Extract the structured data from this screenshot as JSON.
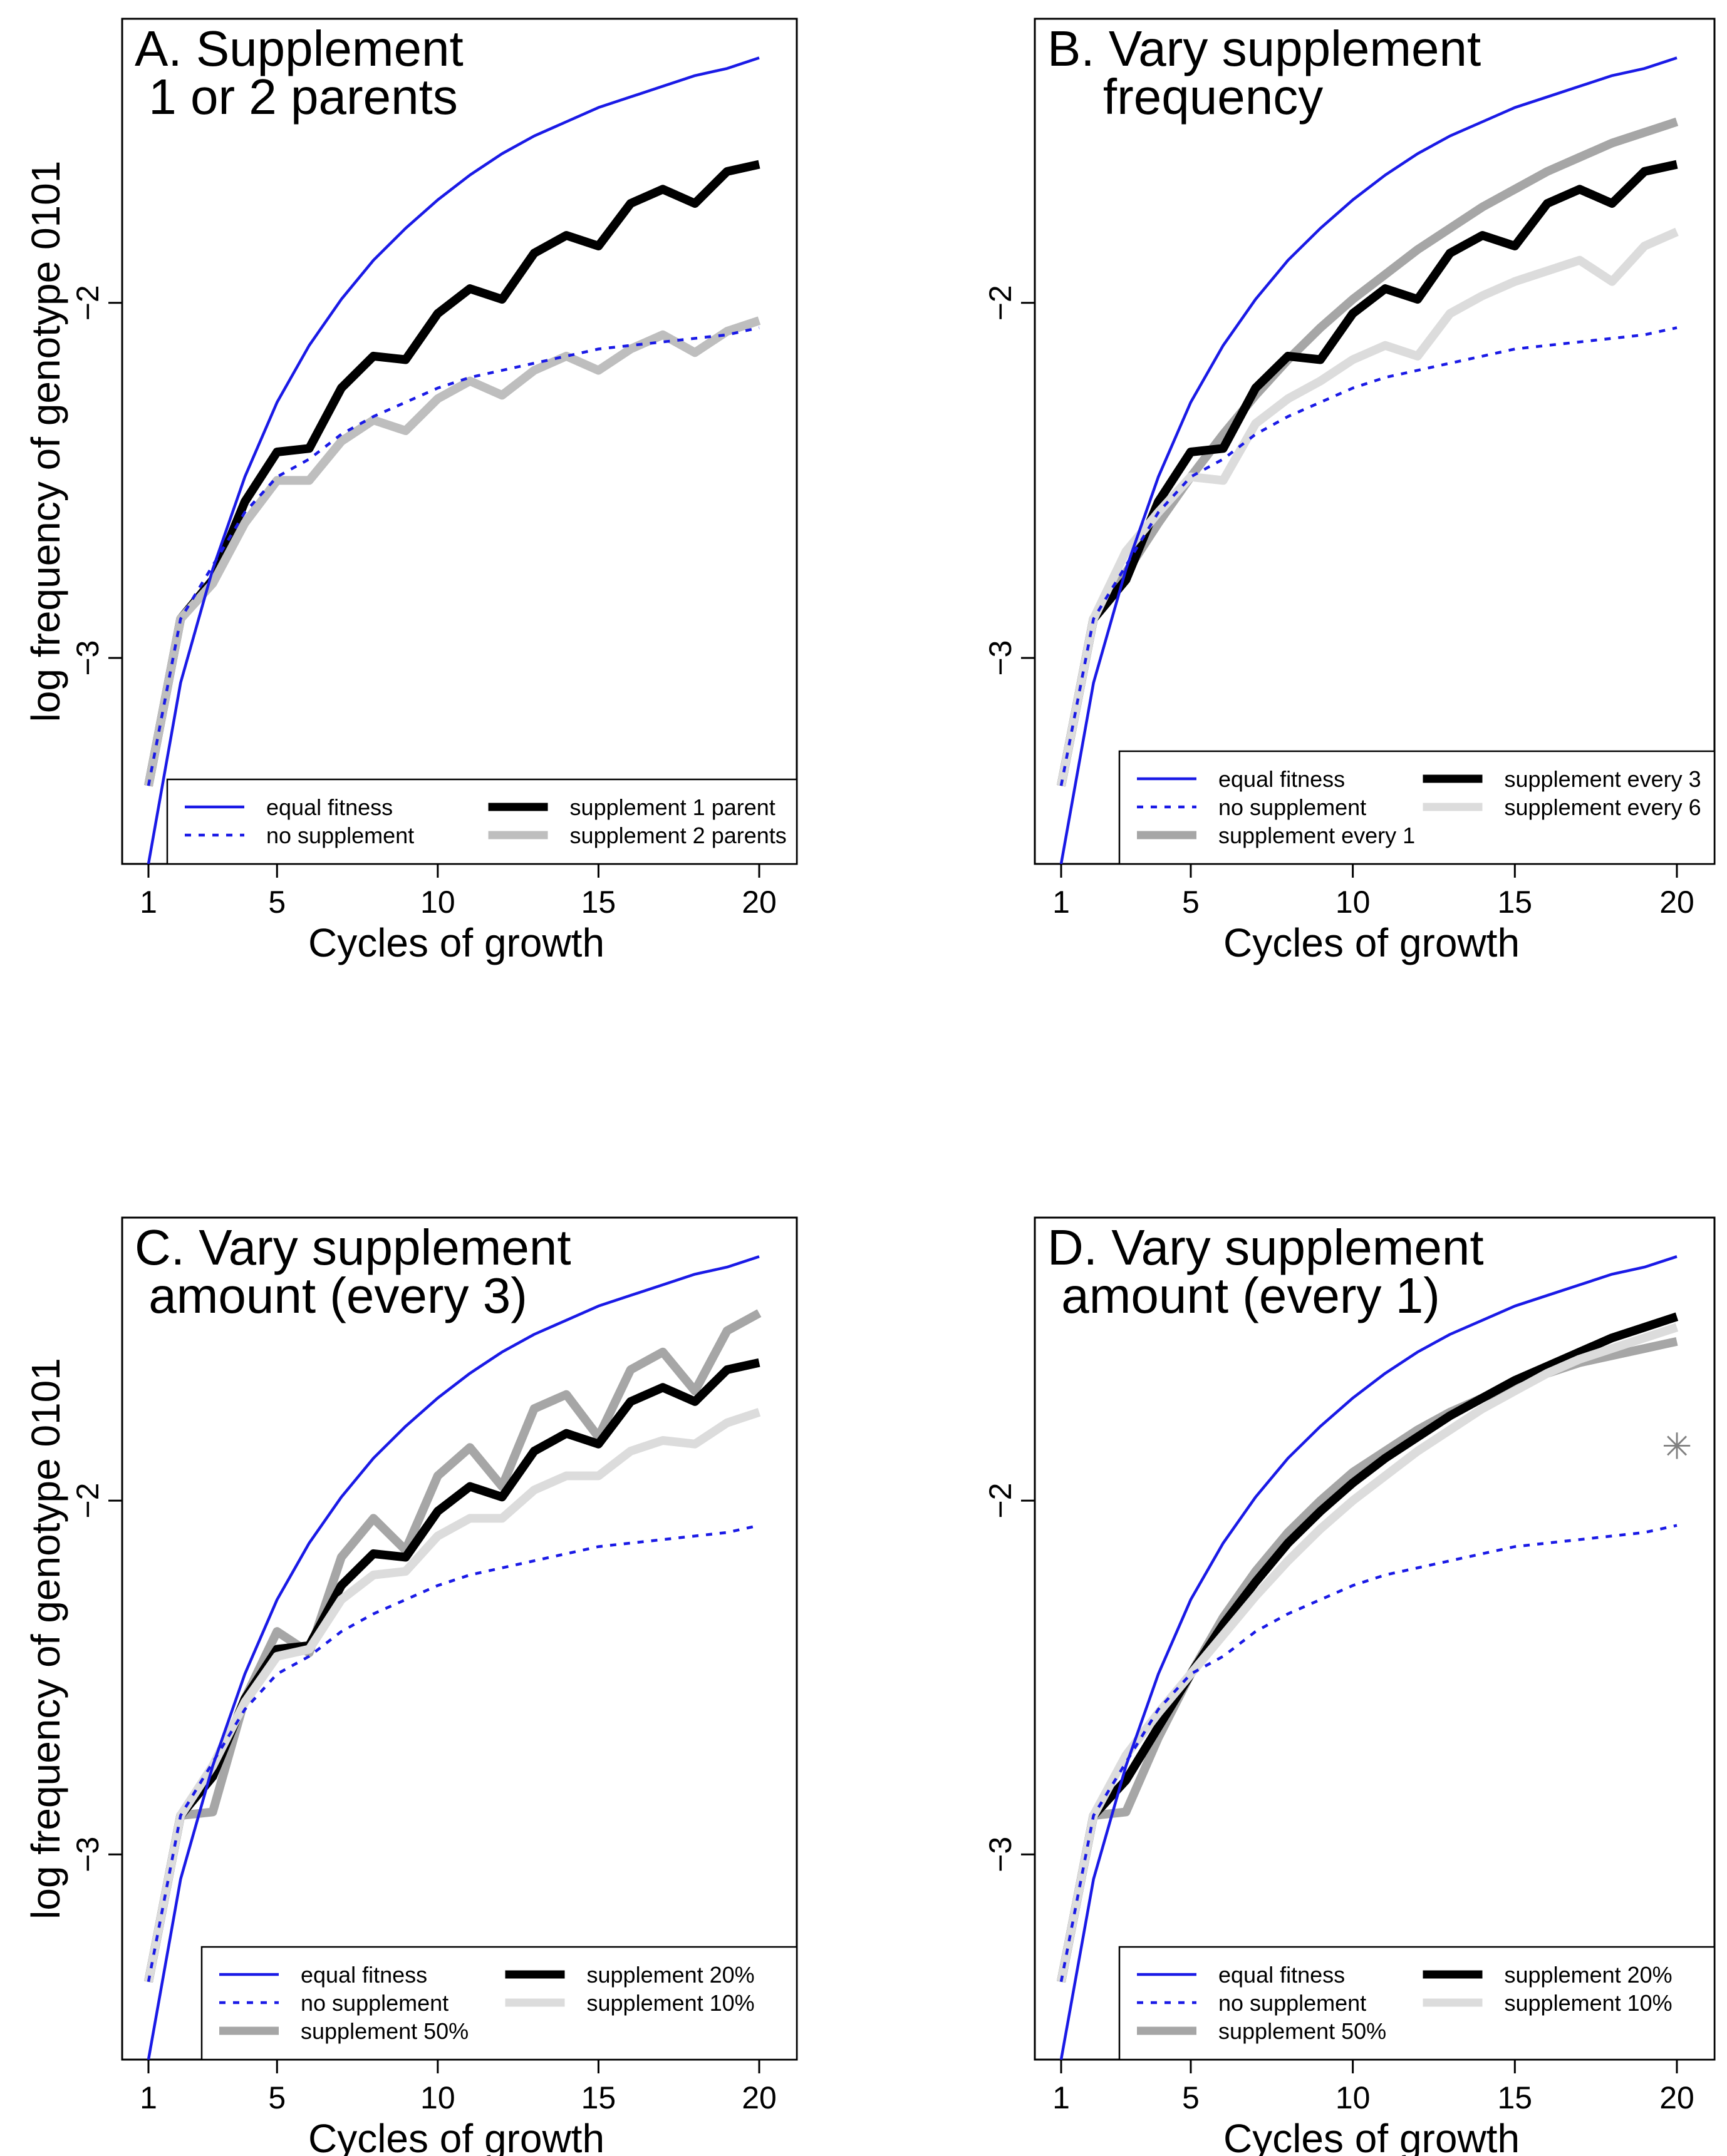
{
  "colors": {
    "blue": "#1a1ae6",
    "black": "#000000",
    "darkgray": "#a6a6a6",
    "midgray": "#bebebe",
    "lightgray": "#dcdcdc",
    "star": "#808080"
  },
  "chart_data": [
    {
      "id": "A",
      "type": "line",
      "title_lines": [
        "A. Supplement",
        " 1 or 2 parents"
      ],
      "xlabel": "Cycles of growth",
      "ylabel": "log frequency of genotype 0101",
      "xlim": [
        1,
        20
      ],
      "ylim": [
        -3.58,
        -1.2
      ],
      "xticks": [
        "1",
        "5",
        "10",
        "15",
        "20"
      ],
      "yticks": [
        "−2",
        "−3"
      ],
      "series": [
        {
          "name": "equal fitness",
          "style": "blue-solid",
          "x": [
            1,
            2,
            3,
            4,
            5,
            6,
            7,
            8,
            9,
            10,
            11,
            12,
            13,
            14,
            15,
            16,
            17,
            18,
            19,
            20
          ],
          "values": [
            -3.58,
            -3.07,
            -2.75,
            -2.49,
            -2.28,
            -2.12,
            -1.99,
            -1.88,
            -1.79,
            -1.71,
            -1.64,
            -1.58,
            -1.53,
            -1.49,
            -1.45,
            -1.42,
            -1.39,
            -1.36,
            -1.34,
            -1.31
          ]
        },
        {
          "name": "no supplement",
          "style": "blue-dotted",
          "x": [
            1,
            2,
            3,
            4,
            5,
            6,
            7,
            8,
            9,
            10,
            11,
            12,
            13,
            14,
            15,
            16,
            17,
            18,
            19,
            20
          ],
          "values": [
            -3.36,
            -2.89,
            -2.74,
            -2.59,
            -2.49,
            -2.44,
            -2.37,
            -2.32,
            -2.28,
            -2.24,
            -2.21,
            -2.19,
            -2.17,
            -2.15,
            -2.13,
            -2.12,
            -2.11,
            -2.1,
            -2.09,
            -2.07
          ]
        },
        {
          "name": "supplement 1 parent",
          "style": "black-thick",
          "x": [
            1,
            2,
            3,
            4,
            5,
            6,
            7,
            8,
            9,
            10,
            11,
            12,
            13,
            14,
            15,
            16,
            17,
            18,
            19,
            20
          ],
          "values": [
            -3.36,
            -2.89,
            -2.78,
            -2.56,
            -2.42,
            -2.41,
            -2.24,
            -2.15,
            -2.16,
            -2.03,
            -1.96,
            -1.99,
            -1.86,
            -1.81,
            -1.84,
            -1.72,
            -1.68,
            -1.72,
            -1.63,
            -1.61
          ]
        },
        {
          "name": "supplement 2 parents",
          "style": "gray-thick",
          "x": [
            1,
            2,
            3,
            4,
            5,
            6,
            7,
            8,
            9,
            10,
            11,
            12,
            13,
            14,
            15,
            16,
            17,
            18,
            19,
            20
          ],
          "values": [
            -3.36,
            -2.89,
            -2.79,
            -2.62,
            -2.5,
            -2.5,
            -2.39,
            -2.33,
            -2.36,
            -2.27,
            -2.22,
            -2.26,
            -2.19,
            -2.15,
            -2.19,
            -2.13,
            -2.09,
            -2.14,
            -2.08,
            -2.05
          ]
        }
      ],
      "legend": {
        "left": [
          "equal fitness",
          "no supplement"
        ],
        "right": [
          "supplement 1 parent",
          "supplement 2 parents"
        ]
      }
    },
    {
      "id": "B",
      "type": "line",
      "title_lines": [
        "B. Vary supplement",
        "    frequency"
      ],
      "xlabel": "Cycles of growth",
      "ylabel": "",
      "xlim": [
        1,
        20
      ],
      "ylim": [
        -3.58,
        -1.2
      ],
      "xticks": [
        "1",
        "5",
        "10",
        "15",
        "20"
      ],
      "yticks": [
        "−2",
        "−3"
      ],
      "series": [
        {
          "name": "equal fitness",
          "style": "blue-solid",
          "x": [
            1,
            2,
            3,
            4,
            5,
            6,
            7,
            8,
            9,
            10,
            11,
            12,
            13,
            14,
            15,
            16,
            17,
            18,
            19,
            20
          ],
          "values": [
            -3.58,
            -3.07,
            -2.75,
            -2.49,
            -2.28,
            -2.12,
            -1.99,
            -1.88,
            -1.79,
            -1.71,
            -1.64,
            -1.58,
            -1.53,
            -1.49,
            -1.45,
            -1.42,
            -1.39,
            -1.36,
            -1.34,
            -1.31
          ]
        },
        {
          "name": "no supplement",
          "style": "blue-dotted",
          "x": [
            1,
            2,
            3,
            4,
            5,
            6,
            7,
            8,
            9,
            10,
            11,
            12,
            13,
            14,
            15,
            16,
            17,
            18,
            19,
            20
          ],
          "values": [
            -3.36,
            -2.89,
            -2.74,
            -2.59,
            -2.49,
            -2.44,
            -2.37,
            -2.32,
            -2.28,
            -2.24,
            -2.21,
            -2.19,
            -2.17,
            -2.15,
            -2.13,
            -2.12,
            -2.11,
            -2.1,
            -2.09,
            -2.07
          ]
        },
        {
          "name": "supplement every 1",
          "style": "darkgray-thick",
          "x": [
            1,
            2,
            3,
            4,
            5,
            6,
            7,
            8,
            9,
            10,
            11,
            12,
            13,
            14,
            15,
            16,
            17,
            18,
            19,
            20
          ],
          "values": [
            -3.36,
            -2.89,
            -2.76,
            -2.62,
            -2.49,
            -2.37,
            -2.26,
            -2.16,
            -2.07,
            -1.99,
            -1.92,
            -1.85,
            -1.79,
            -1.73,
            -1.68,
            -1.63,
            -1.59,
            -1.55,
            -1.52,
            -1.49
          ]
        },
        {
          "name": "supplement every 3",
          "style": "black-thick",
          "x": [
            1,
            2,
            3,
            4,
            5,
            6,
            7,
            8,
            9,
            10,
            11,
            12,
            13,
            14,
            15,
            16,
            17,
            18,
            19,
            20
          ],
          "values": [
            -3.36,
            -2.89,
            -2.78,
            -2.56,
            -2.42,
            -2.41,
            -2.24,
            -2.15,
            -2.16,
            -2.03,
            -1.96,
            -1.99,
            -1.86,
            -1.81,
            -1.84,
            -1.72,
            -1.68,
            -1.72,
            -1.63,
            -1.61
          ]
        },
        {
          "name": "supplement every 6",
          "style": "lightgray-thick",
          "x": [
            1,
            2,
            3,
            4,
            5,
            6,
            7,
            8,
            9,
            10,
            11,
            12,
            13,
            14,
            15,
            16,
            17,
            18,
            19,
            20
          ],
          "values": [
            -3.36,
            -2.89,
            -2.7,
            -2.59,
            -2.49,
            -2.5,
            -2.34,
            -2.27,
            -2.22,
            -2.16,
            -2.12,
            -2.15,
            -2.03,
            -1.98,
            -1.94,
            -1.91,
            -1.88,
            -1.94,
            -1.84,
            -1.8
          ]
        }
      ],
      "legend": {
        "left": [
          "equal fitness",
          "no supplement",
          "supplement every 1"
        ],
        "right": [
          "supplement every 3",
          "supplement every 6"
        ]
      }
    },
    {
      "id": "C",
      "type": "line",
      "title_lines": [
        "C. Vary supplement",
        " amount (every 3)"
      ],
      "xlabel": "Cycles of growth",
      "ylabel": "log frequency of genotype 0101",
      "xlim": [
        1,
        20
      ],
      "ylim": [
        -3.58,
        -1.2
      ],
      "xticks": [
        "1",
        "5",
        "10",
        "15",
        "20"
      ],
      "yticks": [
        "−2",
        "−3"
      ],
      "series": [
        {
          "name": "equal fitness",
          "style": "blue-solid",
          "x": [
            1,
            2,
            3,
            4,
            5,
            6,
            7,
            8,
            9,
            10,
            11,
            12,
            13,
            14,
            15,
            16,
            17,
            18,
            19,
            20
          ],
          "values": [
            -3.58,
            -3.07,
            -2.75,
            -2.49,
            -2.28,
            -2.12,
            -1.99,
            -1.88,
            -1.79,
            -1.71,
            -1.64,
            -1.58,
            -1.53,
            -1.49,
            -1.45,
            -1.42,
            -1.39,
            -1.36,
            -1.34,
            -1.31
          ]
        },
        {
          "name": "no supplement",
          "style": "blue-dotted",
          "x": [
            1,
            2,
            3,
            4,
            5,
            6,
            7,
            8,
            9,
            10,
            11,
            12,
            13,
            14,
            15,
            16,
            17,
            18,
            19,
            20
          ],
          "values": [
            -3.36,
            -2.89,
            -2.74,
            -2.59,
            -2.49,
            -2.44,
            -2.37,
            -2.32,
            -2.28,
            -2.24,
            -2.21,
            -2.19,
            -2.17,
            -2.15,
            -2.13,
            -2.12,
            -2.11,
            -2.1,
            -2.09,
            -2.07
          ]
        },
        {
          "name": "supplement 50%",
          "style": "darkgray-thick",
          "x": [
            1,
            2,
            3,
            4,
            5,
            6,
            7,
            8,
            9,
            10,
            11,
            12,
            13,
            14,
            15,
            16,
            17,
            18,
            19,
            20
          ],
          "values": [
            -3.36,
            -2.89,
            -2.88,
            -2.56,
            -2.37,
            -2.43,
            -2.16,
            -2.05,
            -2.14,
            -1.93,
            -1.85,
            -1.96,
            -1.74,
            -1.7,
            -1.82,
            -1.63,
            -1.58,
            -1.69,
            -1.52,
            -1.47
          ]
        },
        {
          "name": "supplement 20%",
          "style": "black-thick",
          "x": [
            1,
            2,
            3,
            4,
            5,
            6,
            7,
            8,
            9,
            10,
            11,
            12,
            13,
            14,
            15,
            16,
            17,
            18,
            19,
            20
          ],
          "values": [
            -3.36,
            -2.89,
            -2.78,
            -2.56,
            -2.42,
            -2.41,
            -2.24,
            -2.15,
            -2.16,
            -2.03,
            -1.96,
            -1.99,
            -1.86,
            -1.81,
            -1.84,
            -1.72,
            -1.68,
            -1.72,
            -1.63,
            -1.61
          ]
        },
        {
          "name": "supplement 10%",
          "style": "lightgray-thick",
          "x": [
            1,
            2,
            3,
            4,
            5,
            6,
            7,
            8,
            9,
            10,
            11,
            12,
            13,
            14,
            15,
            16,
            17,
            18,
            19,
            20
          ],
          "values": [
            -3.36,
            -2.89,
            -2.75,
            -2.57,
            -2.44,
            -2.42,
            -2.28,
            -2.21,
            -2.2,
            -2.1,
            -2.05,
            -2.05,
            -1.97,
            -1.93,
            -1.93,
            -1.86,
            -1.83,
            -1.84,
            -1.78,
            -1.75
          ]
        }
      ],
      "legend": {
        "left": [
          "equal fitness",
          "no supplement",
          "supplement 50%"
        ],
        "right": [
          "supplement 20%",
          "supplement 10%"
        ]
      }
    },
    {
      "id": "D",
      "type": "line",
      "title_lines": [
        "D. Vary supplement",
        " amount (every 1)"
      ],
      "xlabel": "Cycles of growth",
      "ylabel": "",
      "xlim": [
        1,
        20
      ],
      "ylim": [
        -3.58,
        -1.2
      ],
      "xticks": [
        "1",
        "5",
        "10",
        "15",
        "20"
      ],
      "yticks": [
        "−2",
        "−3"
      ],
      "series": [
        {
          "name": "equal fitness",
          "style": "blue-solid",
          "x": [
            1,
            2,
            3,
            4,
            5,
            6,
            7,
            8,
            9,
            10,
            11,
            12,
            13,
            14,
            15,
            16,
            17,
            18,
            19,
            20
          ],
          "values": [
            -3.58,
            -3.07,
            -2.75,
            -2.49,
            -2.28,
            -2.12,
            -1.99,
            -1.88,
            -1.79,
            -1.71,
            -1.64,
            -1.58,
            -1.53,
            -1.49,
            -1.45,
            -1.42,
            -1.39,
            -1.36,
            -1.34,
            -1.31
          ]
        },
        {
          "name": "no supplement",
          "style": "blue-dotted",
          "x": [
            1,
            2,
            3,
            4,
            5,
            6,
            7,
            8,
            9,
            10,
            11,
            12,
            13,
            14,
            15,
            16,
            17,
            18,
            19,
            20
          ],
          "values": [
            -3.36,
            -2.89,
            -2.74,
            -2.59,
            -2.49,
            -2.44,
            -2.37,
            -2.32,
            -2.28,
            -2.24,
            -2.21,
            -2.19,
            -2.17,
            -2.15,
            -2.13,
            -2.12,
            -2.11,
            -2.1,
            -2.09,
            -2.07
          ]
        },
        {
          "name": "supplement 50%",
          "style": "darkgray-thick",
          "x": [
            1,
            2,
            3,
            4,
            5,
            6,
            7,
            8,
            9,
            10,
            11,
            12,
            13,
            14,
            15,
            16,
            17,
            18,
            19,
            20
          ],
          "values": [
            -3.36,
            -2.89,
            -2.88,
            -2.67,
            -2.49,
            -2.33,
            -2.2,
            -2.09,
            -2.0,
            -1.92,
            -1.86,
            -1.8,
            -1.75,
            -1.71,
            -1.67,
            -1.64,
            -1.61,
            -1.59,
            -1.57,
            -1.55
          ]
        },
        {
          "name": "supplement 20%",
          "style": "black-thick",
          "x": [
            1,
            2,
            3,
            4,
            5,
            6,
            7,
            8,
            9,
            10,
            11,
            12,
            13,
            14,
            15,
            16,
            17,
            18,
            19,
            20
          ],
          "values": [
            -3.36,
            -2.89,
            -2.79,
            -2.64,
            -2.49,
            -2.35,
            -2.23,
            -2.12,
            -2.03,
            -1.95,
            -1.88,
            -1.82,
            -1.76,
            -1.71,
            -1.66,
            -1.62,
            -1.58,
            -1.54,
            -1.51,
            -1.48
          ]
        },
        {
          "name": "supplement 10%",
          "style": "lightgray-thick",
          "x": [
            1,
            2,
            3,
            4,
            5,
            6,
            7,
            8,
            9,
            10,
            11,
            12,
            13,
            14,
            15,
            16,
            17,
            18,
            19,
            20
          ],
          "values": [
            -3.36,
            -2.89,
            -2.72,
            -2.6,
            -2.49,
            -2.38,
            -2.27,
            -2.17,
            -2.08,
            -2.0,
            -1.93,
            -1.86,
            -1.8,
            -1.74,
            -1.69,
            -1.64,
            -1.6,
            -1.57,
            -1.54,
            -1.51
          ]
        }
      ],
      "marker": {
        "x": 20,
        "y": -1.85,
        "symbol": "✳"
      },
      "legend": {
        "left": [
          "equal fitness",
          "no supplement",
          "supplement 50%"
        ],
        "right": [
          "supplement 20%",
          "supplement 10%"
        ]
      }
    }
  ]
}
